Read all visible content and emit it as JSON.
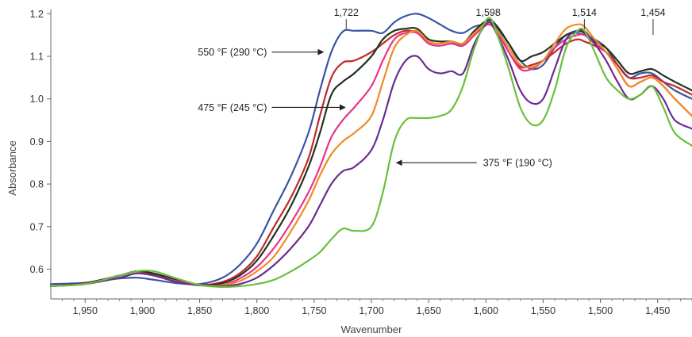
{
  "chart_data": {
    "type": "line",
    "title": "",
    "xlabel": "Wavenumber",
    "ylabel": "Absorbance",
    "xlim": [
      1980,
      1420
    ],
    "ylim": [
      0.53,
      1.21
    ],
    "x_reversed": true,
    "grid": false,
    "legend": "none",
    "xticks": [
      1950,
      1900,
      1850,
      1800,
      1750,
      1700,
      1650,
      1600,
      1550,
      1500,
      1450
    ],
    "xtick_labels": [
      "1,950",
      "1,900",
      "1,850",
      "1,800",
      "1,750",
      "1,700",
      "1,650",
      "1,600",
      "1,550",
      "1,500",
      "1,450"
    ],
    "yticks": [
      0.6,
      0.7,
      0.8,
      0.9,
      1.0,
      1.1,
      1.2
    ],
    "ytick_labels": [
      "0.6",
      "0.7",
      "0.8",
      "0.9",
      "1.0",
      "1.1",
      "1.2"
    ],
    "series": [
      {
        "color": "#3b54a3",
        "x": [
          1980,
          1950,
          1920,
          1905,
          1890,
          1870,
          1850,
          1830,
          1815,
          1800,
          1785,
          1770,
          1755,
          1745,
          1735,
          1725,
          1715,
          1700,
          1690,
          1680,
          1670,
          1660,
          1650,
          1640,
          1630,
          1620,
          1610,
          1598,
          1590,
          1580,
          1570,
          1560,
          1550,
          1540,
          1530,
          1520,
          1514,
          1505,
          1495,
          1485,
          1475,
          1465,
          1455,
          1445,
          1435,
          1420
        ],
        "y": [
          0.565,
          0.568,
          0.578,
          0.58,
          0.575,
          0.567,
          0.565,
          0.58,
          0.61,
          0.66,
          0.74,
          0.82,
          0.92,
          1.02,
          1.11,
          1.158,
          1.16,
          1.16,
          1.155,
          1.18,
          1.195,
          1.2,
          1.19,
          1.175,
          1.16,
          1.155,
          1.17,
          1.175,
          1.165,
          1.13,
          1.09,
          1.07,
          1.08,
          1.12,
          1.15,
          1.155,
          1.15,
          1.14,
          1.12,
          1.08,
          1.05,
          1.06,
          1.06,
          1.04,
          1.02,
          1.0
        ]
      },
      {
        "color": "#c0282a",
        "x": [
          1980,
          1950,
          1920,
          1905,
          1890,
          1870,
          1850,
          1830,
          1815,
          1800,
          1785,
          1770,
          1755,
          1745,
          1735,
          1725,
          1715,
          1700,
          1690,
          1680,
          1670,
          1660,
          1650,
          1640,
          1630,
          1620,
          1610,
          1598,
          1590,
          1580,
          1570,
          1560,
          1550,
          1540,
          1530,
          1520,
          1514,
          1505,
          1495,
          1485,
          1475,
          1465,
          1455,
          1445,
          1435,
          1420
        ],
        "y": [
          0.56,
          0.567,
          0.585,
          0.595,
          0.588,
          0.575,
          0.563,
          0.57,
          0.59,
          0.63,
          0.7,
          0.77,
          0.86,
          0.96,
          1.05,
          1.085,
          1.09,
          1.11,
          1.13,
          1.15,
          1.16,
          1.155,
          1.13,
          1.125,
          1.13,
          1.125,
          1.15,
          1.18,
          1.16,
          1.11,
          1.075,
          1.08,
          1.09,
          1.11,
          1.13,
          1.14,
          1.135,
          1.125,
          1.11,
          1.08,
          1.05,
          1.05,
          1.055,
          1.04,
          1.03,
          1.01
        ]
      },
      {
        "color": "#1f3320",
        "x": [
          1980,
          1950,
          1920,
          1905,
          1890,
          1870,
          1850,
          1830,
          1815,
          1800,
          1785,
          1770,
          1755,
          1745,
          1735,
          1725,
          1715,
          1700,
          1690,
          1680,
          1670,
          1660,
          1650,
          1640,
          1630,
          1620,
          1610,
          1598,
          1590,
          1580,
          1570,
          1560,
          1550,
          1540,
          1530,
          1520,
          1514,
          1505,
          1495,
          1485,
          1475,
          1465,
          1455,
          1445,
          1435,
          1420
        ],
        "y": [
          0.56,
          0.567,
          0.585,
          0.595,
          0.59,
          0.575,
          0.563,
          0.567,
          0.585,
          0.62,
          0.68,
          0.75,
          0.84,
          0.92,
          1.01,
          1.04,
          1.06,
          1.1,
          1.14,
          1.16,
          1.165,
          1.165,
          1.14,
          1.135,
          1.135,
          1.13,
          1.16,
          1.185,
          1.17,
          1.13,
          1.09,
          1.1,
          1.11,
          1.13,
          1.15,
          1.16,
          1.155,
          1.135,
          1.12,
          1.09,
          1.06,
          1.065,
          1.07,
          1.055,
          1.04,
          1.02
        ]
      },
      {
        "color": "#e8338a",
        "x": [
          1980,
          1950,
          1920,
          1905,
          1890,
          1870,
          1850,
          1830,
          1815,
          1800,
          1785,
          1770,
          1755,
          1745,
          1735,
          1725,
          1715,
          1700,
          1690,
          1680,
          1670,
          1660,
          1650,
          1640,
          1630,
          1620,
          1610,
          1598,
          1590,
          1580,
          1570,
          1560,
          1550,
          1540,
          1530,
          1520,
          1514,
          1505,
          1495,
          1485,
          1475,
          1465,
          1455,
          1445,
          1435,
          1420
        ],
        "y": [
          0.56,
          0.566,
          0.58,
          0.59,
          0.585,
          0.572,
          0.562,
          0.563,
          0.578,
          0.605,
          0.65,
          0.71,
          0.78,
          0.84,
          0.91,
          0.95,
          0.98,
          1.03,
          1.09,
          1.14,
          1.155,
          1.155,
          1.13,
          1.125,
          1.13,
          1.125,
          1.15,
          1.175,
          1.155,
          1.11,
          1.07,
          1.07,
          1.09,
          1.12,
          1.14,
          1.15,
          1.15,
          1.13,
          1.11,
          1.07,
          1.03,
          1.04,
          1.05,
          1.03,
          1.0,
          0.96
        ]
      },
      {
        "color": "#f08a24",
        "x": [
          1980,
          1950,
          1920,
          1905,
          1890,
          1870,
          1850,
          1830,
          1815,
          1800,
          1785,
          1770,
          1755,
          1745,
          1735,
          1725,
          1715,
          1700,
          1690,
          1680,
          1670,
          1660,
          1650,
          1640,
          1630,
          1620,
          1610,
          1598,
          1590,
          1580,
          1570,
          1560,
          1550,
          1540,
          1530,
          1520,
          1514,
          1505,
          1495,
          1485,
          1475,
          1465,
          1455,
          1445,
          1435,
          1420
        ],
        "y": [
          0.56,
          0.565,
          0.58,
          0.59,
          0.585,
          0.57,
          0.562,
          0.562,
          0.572,
          0.595,
          0.63,
          0.69,
          0.76,
          0.82,
          0.87,
          0.9,
          0.92,
          0.96,
          1.04,
          1.12,
          1.15,
          1.16,
          1.135,
          1.13,
          1.135,
          1.13,
          1.155,
          1.18,
          1.16,
          1.12,
          1.08,
          1.075,
          1.09,
          1.13,
          1.165,
          1.175,
          1.17,
          1.14,
          1.11,
          1.07,
          1.03,
          1.04,
          1.05,
          1.03,
          1.0,
          0.96
        ]
      },
      {
        "color": "#6a2c91",
        "x": [
          1980,
          1950,
          1920,
          1905,
          1890,
          1870,
          1850,
          1830,
          1815,
          1800,
          1785,
          1770,
          1755,
          1745,
          1735,
          1725,
          1715,
          1700,
          1690,
          1680,
          1670,
          1660,
          1650,
          1640,
          1630,
          1620,
          1610,
          1598,
          1590,
          1580,
          1570,
          1560,
          1550,
          1540,
          1530,
          1520,
          1514,
          1505,
          1495,
          1485,
          1475,
          1465,
          1455,
          1445,
          1435,
          1420
        ],
        "y": [
          0.56,
          0.565,
          0.58,
          0.59,
          0.585,
          0.57,
          0.562,
          0.56,
          0.565,
          0.58,
          0.61,
          0.65,
          0.7,
          0.75,
          0.8,
          0.83,
          0.84,
          0.88,
          0.95,
          1.04,
          1.09,
          1.1,
          1.07,
          1.06,
          1.065,
          1.06,
          1.13,
          1.18,
          1.15,
          1.09,
          1.02,
          0.99,
          1.0,
          1.07,
          1.14,
          1.16,
          1.16,
          1.13,
          1.09,
          1.04,
          1.0,
          1.01,
          1.03,
          1.0,
          0.95,
          0.93
        ]
      },
      {
        "color": "#6abf3d",
        "x": [
          1980,
          1950,
          1920,
          1905,
          1890,
          1870,
          1850,
          1830,
          1815,
          1800,
          1785,
          1770,
          1755,
          1745,
          1735,
          1725,
          1715,
          1700,
          1690,
          1680,
          1670,
          1660,
          1650,
          1640,
          1630,
          1620,
          1610,
          1598,
          1590,
          1580,
          1570,
          1560,
          1550,
          1540,
          1530,
          1520,
          1514,
          1505,
          1495,
          1485,
          1475,
          1465,
          1455,
          1445,
          1435,
          1420
        ],
        "y": [
          0.56,
          0.565,
          0.585,
          0.595,
          0.595,
          0.578,
          0.563,
          0.558,
          0.56,
          0.565,
          0.575,
          0.595,
          0.62,
          0.64,
          0.67,
          0.695,
          0.69,
          0.7,
          0.78,
          0.9,
          0.95,
          0.955,
          0.955,
          0.96,
          0.975,
          1.03,
          1.12,
          1.19,
          1.15,
          1.07,
          0.98,
          0.94,
          0.95,
          1.02,
          1.12,
          1.16,
          1.16,
          1.11,
          1.05,
          1.02,
          1.0,
          1.01,
          1.03,
          0.98,
          0.92,
          0.89
        ]
      }
    ],
    "annotations": [
      {
        "text": "1,722",
        "x": 1722,
        "y": 1.16
      },
      {
        "text": "1,598",
        "x": 1598,
        "y": 1.18
      },
      {
        "text": "1,514",
        "x": 1514,
        "y": 1.16
      },
      {
        "text": "1,454",
        "x": 1454,
        "y": 1.07
      }
    ],
    "arrow_labels": [
      {
        "text": "550 °F (290 °C)",
        "text_at": [
          1860,
          1.11
        ],
        "arrow_from": [
          1787,
          1.11
        ],
        "arrow_to": [
          1742,
          1.11
        ]
      },
      {
        "text": "475 °F (245 °C)",
        "text_at": [
          1880,
          1.0
        ],
        "arrow_from": [
          1787,
          0.98
        ],
        "arrow_to": [
          1723,
          0.98
        ]
      },
      {
        "text": "375 °F (190 °C)",
        "text_at": [
          1570,
          0.85
        ],
        "arrow_from": [
          1608,
          0.85
        ],
        "arrow_to": [
          1678,
          0.85
        ]
      }
    ]
  }
}
